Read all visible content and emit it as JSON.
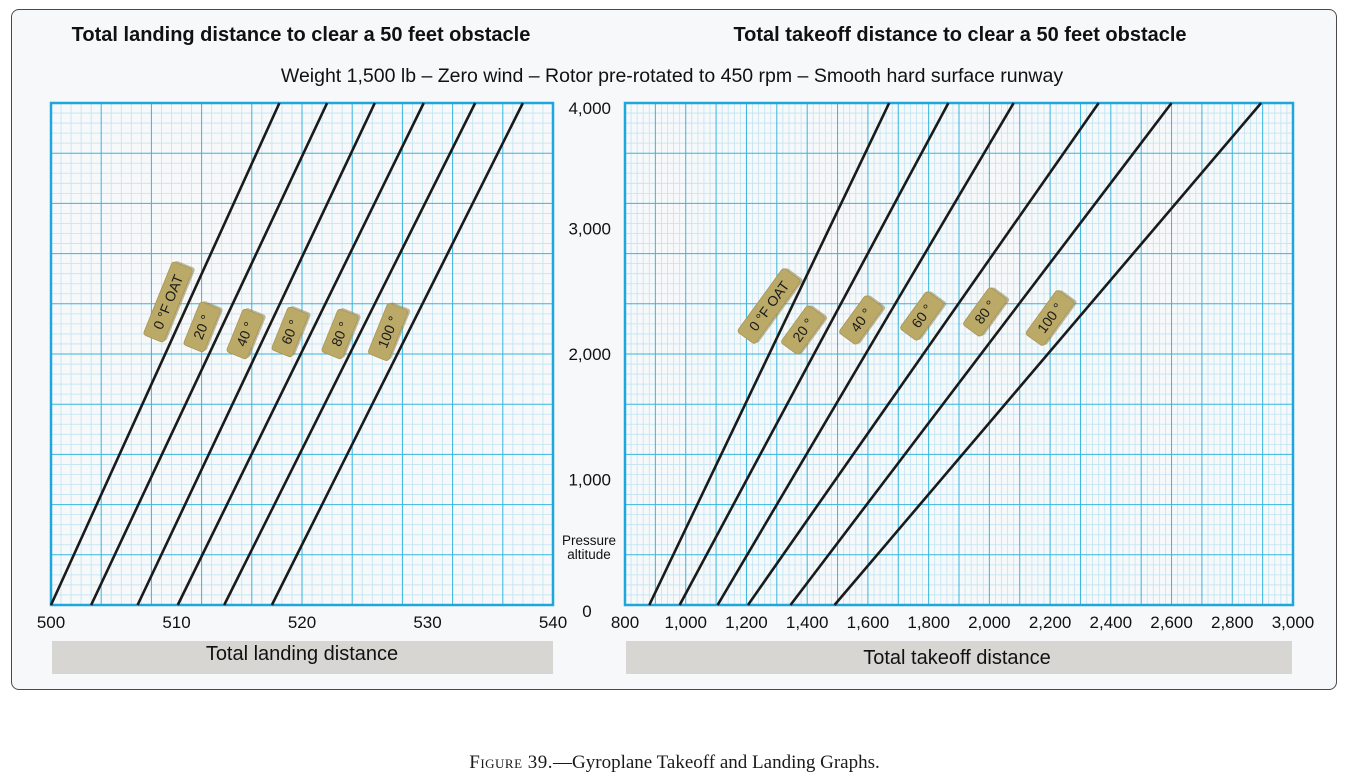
{
  "titles": {
    "landing": "Total landing distance to clear a 50 feet obstacle",
    "takeoff": "Total takeoff distance to clear a 50 feet obstacle",
    "subtitle": "Weight 1,500 lb – Zero wind – Rotor pre-rotated to 450 rpm – Smooth hard surface runway"
  },
  "y_axis": {
    "label_line1": "Pressure",
    "label_line2": "altitude",
    "ticks": [
      "0",
      "1,000",
      "2,000",
      "3,000",
      "4,000"
    ]
  },
  "caption": {
    "figure": "Figure 39.",
    "text": "—Gyroplane Takeoff and Landing Graphs."
  },
  "colors": {
    "grid_major": "#35b6e0",
    "grid_minor": "#bfe4f2",
    "border": "#1ea7dd",
    "line": "#1a1a1a",
    "tag": "#bba968",
    "xbar": "#d8d6d2"
  },
  "chart_data": [
    {
      "type": "line",
      "title": "Total landing distance to clear a 50 feet obstacle",
      "subtitle": "Weight 1,500 lb – Zero wind – Rotor pre-rotated to 450 rpm – Smooth hard surface runway",
      "xlabel": "Total landing distance",
      "ylabel": "Pressure altitude",
      "xlim": [
        500,
        540
      ],
      "ylim": [
        0,
        4000
      ],
      "xticks": [
        "500",
        "510",
        "520",
        "530",
        "540"
      ],
      "grid": true,
      "series": [
        {
          "name": "0 °F OAT",
          "x": [
            500,
            518.2
          ],
          "y": [
            0,
            4000
          ]
        },
        {
          "name": "20 °",
          "x": [
            503.2,
            522
          ],
          "y": [
            0,
            4000
          ]
        },
        {
          "name": "40 °",
          "x": [
            506.9,
            525.8
          ],
          "y": [
            0,
            4000
          ]
        },
        {
          "name": "60 °",
          "x": [
            510.1,
            529.7
          ],
          "y": [
            0,
            4000
          ]
        },
        {
          "name": "80 °",
          "x": [
            513.8,
            533.8
          ],
          "y": [
            0,
            4000
          ]
        },
        {
          "name": "100 °",
          "x": [
            517.6,
            537.6
          ],
          "y": [
            0,
            4000
          ]
        }
      ]
    },
    {
      "type": "line",
      "title": "Total takeoff distance to clear a 50 feet obstacle",
      "xlabel": "Total takeoff distance",
      "ylabel": "Pressure altitude",
      "xlim": [
        800,
        3000
      ],
      "ylim": [
        0,
        4000
      ],
      "xticks": [
        "800",
        "1,000",
        "1,200",
        "1,400",
        "1,600",
        "1,800",
        "2,000",
        "2,200",
        "2,400",
        "2,600",
        "2,800",
        "3,000"
      ],
      "grid": true,
      "series": [
        {
          "name": "0 °F OAT",
          "x": [
            880,
            1670
          ],
          "y": [
            0,
            4000
          ]
        },
        {
          "name": "20 °",
          "x": [
            980,
            1865
          ],
          "y": [
            0,
            4000
          ]
        },
        {
          "name": "40 °",
          "x": [
            1105,
            2080
          ],
          "y": [
            0,
            4000
          ]
        },
        {
          "name": "60 °",
          "x": [
            1205,
            2360
          ],
          "y": [
            0,
            4000
          ]
        },
        {
          "name": "80 °",
          "x": [
            1345,
            2600
          ],
          "y": [
            0,
            4000
          ]
        },
        {
          "name": "100 °",
          "x": [
            1490,
            2895
          ],
          "y": [
            0,
            4000
          ]
        }
      ]
    }
  ]
}
